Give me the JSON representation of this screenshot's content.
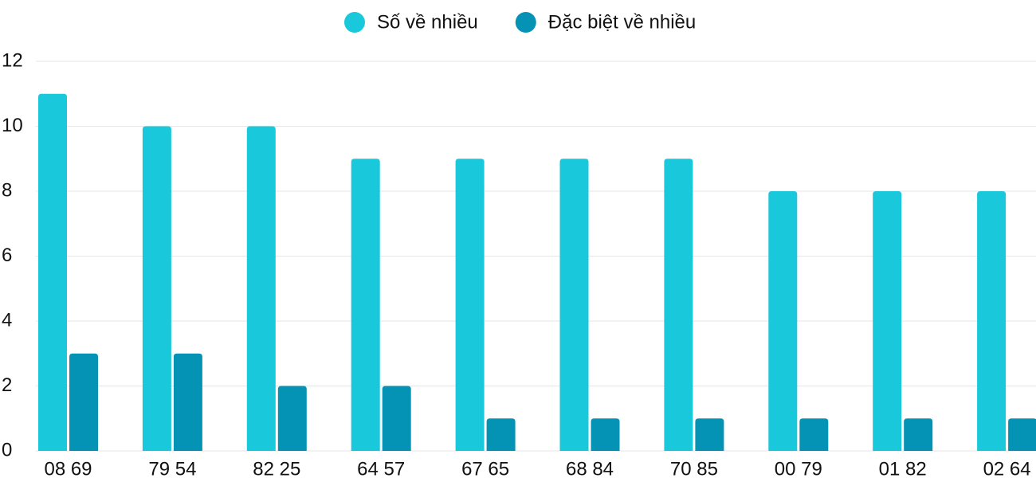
{
  "chart_data": {
    "type": "bar",
    "categories": [
      "08 69",
      "79 54",
      "82 25",
      "64 57",
      "67 65",
      "68 84",
      "70 85",
      "00 79",
      "01 82",
      "02 64"
    ],
    "series": [
      {
        "name": "Số về nhiều",
        "color": "#1ac8db",
        "values": [
          11,
          10,
          10,
          9,
          9,
          9,
          9,
          8,
          8,
          8
        ]
      },
      {
        "name": "Đặc biệt về nhiều",
        "color": "#0593b5",
        "values": [
          3,
          3,
          2,
          2,
          1,
          1,
          1,
          1,
          1,
          1
        ]
      }
    ],
    "ylim": [
      0,
      12
    ],
    "yticks": [
      0,
      2,
      4,
      6,
      8,
      10,
      12
    ],
    "grid": true,
    "legend": "top"
  }
}
